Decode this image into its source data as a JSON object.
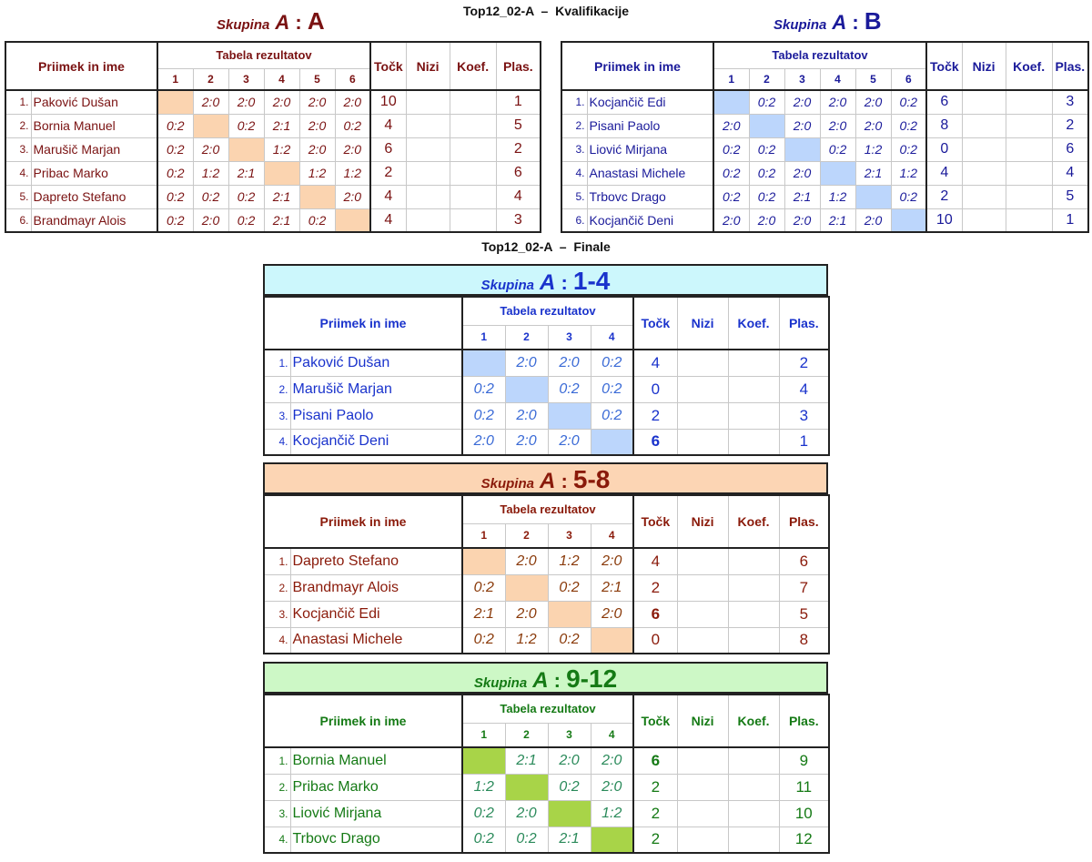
{
  "qual_title": "Top12_02-A  –  Kvalifikacije",
  "final_title": "Top12_02-A  –  Finale",
  "headers": {
    "name": "Priimek in ime",
    "results": "Tabela rezultatov",
    "points": "Točk",
    "sets": "Nizi",
    "coef": "Koef.",
    "place": "Plas."
  },
  "group_word": "Skupina",
  "group_letter": "A",
  "qual_groups": [
    {
      "label": "A",
      "color": "#7a1212",
      "score_color": "#7a1212",
      "diag_color": "#fbd4b0",
      "cols": [
        "1",
        "2",
        "3",
        "4",
        "5",
        "6"
      ],
      "rows": [
        {
          "n": "1.",
          "name": "Paković Dušan",
          "scores": [
            "",
            "2:0",
            "2:0",
            "2:0",
            "2:0",
            "2:0"
          ],
          "points": "10",
          "sets": "",
          "coef": "",
          "place": "1"
        },
        {
          "n": "2.",
          "name": "Bornia Manuel",
          "scores": [
            "0:2",
            "",
            "0:2",
            "2:1",
            "2:0",
            "0:2"
          ],
          "points": "4",
          "sets": "",
          "coef": "",
          "place": "5"
        },
        {
          "n": "3.",
          "name": "Marušič Marjan",
          "scores": [
            "0:2",
            "2:0",
            "",
            "1:2",
            "2:0",
            "2:0"
          ],
          "points": "6",
          "sets": "",
          "coef": "",
          "place": "2"
        },
        {
          "n": "4.",
          "name": "Pribac Marko",
          "scores": [
            "0:2",
            "1:2",
            "2:1",
            "",
            "1:2",
            "1:2"
          ],
          "points": "2",
          "sets": "",
          "coef": "",
          "place": "6"
        },
        {
          "n": "5.",
          "name": "Dapreto Stefano",
          "scores": [
            "0:2",
            "0:2",
            "0:2",
            "2:1",
            "",
            "2:0"
          ],
          "points": "4",
          "sets": "",
          "coef": "",
          "place": "4"
        },
        {
          "n": "6.",
          "name": "Brandmayr Alois",
          "scores": [
            "0:2",
            "2:0",
            "0:2",
            "2:1",
            "0:2",
            ""
          ],
          "points": "4",
          "sets": "",
          "coef": "",
          "place": "3"
        }
      ]
    },
    {
      "label": "B",
      "color": "#1a1a9a",
      "score_color": "#1a1a9a",
      "diag_color": "#bcd6fc",
      "cols": [
        "1",
        "2",
        "3",
        "4",
        "5",
        "6"
      ],
      "rows": [
        {
          "n": "1.",
          "name": "Kocjančič Edi",
          "scores": [
            "",
            "0:2",
            "2:0",
            "2:0",
            "2:0",
            "0:2"
          ],
          "points": "6",
          "sets": "",
          "coef": "",
          "place": "3"
        },
        {
          "n": "2.",
          "name": "Pisani Paolo",
          "scores": [
            "2:0",
            "",
            "2:0",
            "2:0",
            "2:0",
            "0:2"
          ],
          "points": "8",
          "sets": "",
          "coef": "",
          "place": "2"
        },
        {
          "n": "3.",
          "name": "Liović Mirjana",
          "scores": [
            "0:2",
            "0:2",
            "",
            "0:2",
            "1:2",
            "0:2"
          ],
          "points": "0",
          "sets": "",
          "coef": "",
          "place": "6"
        },
        {
          "n": "4.",
          "name": "Anastasi Michele",
          "scores": [
            "0:2",
            "0:2",
            "2:0",
            "",
            "2:1",
            "1:2"
          ],
          "points": "4",
          "sets": "",
          "coef": "",
          "place": "4"
        },
        {
          "n": "5.",
          "name": "Trbovc Drago",
          "scores": [
            "0:2",
            "0:2",
            "2:1",
            "1:2",
            "",
            "0:2"
          ],
          "points": "2",
          "sets": "",
          "coef": "",
          "place": "5"
        },
        {
          "n": "6.",
          "name": "Kocjančič Deni",
          "scores": [
            "2:0",
            "2:0",
            "2:0",
            "2:1",
            "2:0",
            ""
          ],
          "points": "10",
          "sets": "",
          "coef": "",
          "place": "1"
        }
      ]
    }
  ],
  "final_groups": [
    {
      "label": "1-4",
      "color": "#1a33cc",
      "score_color": "#3a6ad6",
      "bar_color": "#ccf7fc",
      "diag_color": "#bcd6fc",
      "cols": [
        "1",
        "2",
        "3",
        "4"
      ],
      "rows": [
        {
          "n": "1.",
          "name": "Paković Dušan",
          "scores": [
            "",
            "2:0",
            "2:0",
            "0:2"
          ],
          "points": "4",
          "sets": "",
          "coef": "",
          "place": "2"
        },
        {
          "n": "2.",
          "name": "Marušič Marjan",
          "scores": [
            "0:2",
            "",
            "0:2",
            "0:2"
          ],
          "points": "0",
          "sets": "",
          "coef": "",
          "place": "4"
        },
        {
          "n": "3.",
          "name": "Pisani Paolo",
          "scores": [
            "0:2",
            "2:0",
            "",
            "0:2"
          ],
          "points": "2",
          "sets": "",
          "coef": "",
          "place": "3"
        },
        {
          "n": "4.",
          "name": "Kocjančič Deni",
          "scores": [
            "2:0",
            "2:0",
            "2:0",
            ""
          ],
          "points": "6",
          "sets": "",
          "coef": "",
          "place": "1"
        }
      ]
    },
    {
      "label": "5-8",
      "color": "#8a1a0a",
      "score_color": "#8a3a0a",
      "bar_color": "#fcd5b4",
      "diag_color": "#fbd4b0",
      "cols": [
        "1",
        "2",
        "3",
        "4"
      ],
      "rows": [
        {
          "n": "1.",
          "name": "Dapreto Stefano",
          "scores": [
            "",
            "2:0",
            "1:2",
            "2:0"
          ],
          "points": "4",
          "sets": "",
          "coef": "",
          "place": "6"
        },
        {
          "n": "2.",
          "name": "Brandmayr Alois",
          "scores": [
            "0:2",
            "",
            "0:2",
            "2:1"
          ],
          "points": "2",
          "sets": "",
          "coef": "",
          "place": "7"
        },
        {
          "n": "3.",
          "name": "Kocjančič Edi",
          "scores": [
            "2:1",
            "2:0",
            "",
            "2:0"
          ],
          "points": "6",
          "sets": "",
          "coef": "",
          "place": "5"
        },
        {
          "n": "4.",
          "name": "Anastasi Michele",
          "scores": [
            "0:2",
            "1:2",
            "0:2",
            ""
          ],
          "points": "0",
          "sets": "",
          "coef": "",
          "place": "8"
        }
      ]
    },
    {
      "label": "9-12",
      "color": "#157a15",
      "score_color": "#2a8a5a",
      "bar_color": "#cdf8c6",
      "diag_color": "#a8d448",
      "cols": [
        "1",
        "2",
        "3",
        "4"
      ],
      "rows": [
        {
          "n": "1.",
          "name": "Bornia Manuel",
          "scores": [
            "",
            "2:1",
            "2:0",
            "2:0"
          ],
          "points": "6",
          "sets": "",
          "coef": "",
          "place": "9"
        },
        {
          "n": "2.",
          "name": "Pribac Marko",
          "scores": [
            "1:2",
            "",
            "0:2",
            "2:0"
          ],
          "points": "2",
          "sets": "",
          "coef": "",
          "place": "11"
        },
        {
          "n": "3.",
          "name": "Liović Mirjana",
          "scores": [
            "0:2",
            "2:0",
            "",
            "1:2"
          ],
          "points": "2",
          "sets": "",
          "coef": "",
          "place": "10"
        },
        {
          "n": "4.",
          "name": "Trbovc Drago",
          "scores": [
            "0:2",
            "0:2",
            "2:1",
            ""
          ],
          "points": "2",
          "sets": "",
          "coef": "",
          "place": "12"
        }
      ]
    }
  ]
}
